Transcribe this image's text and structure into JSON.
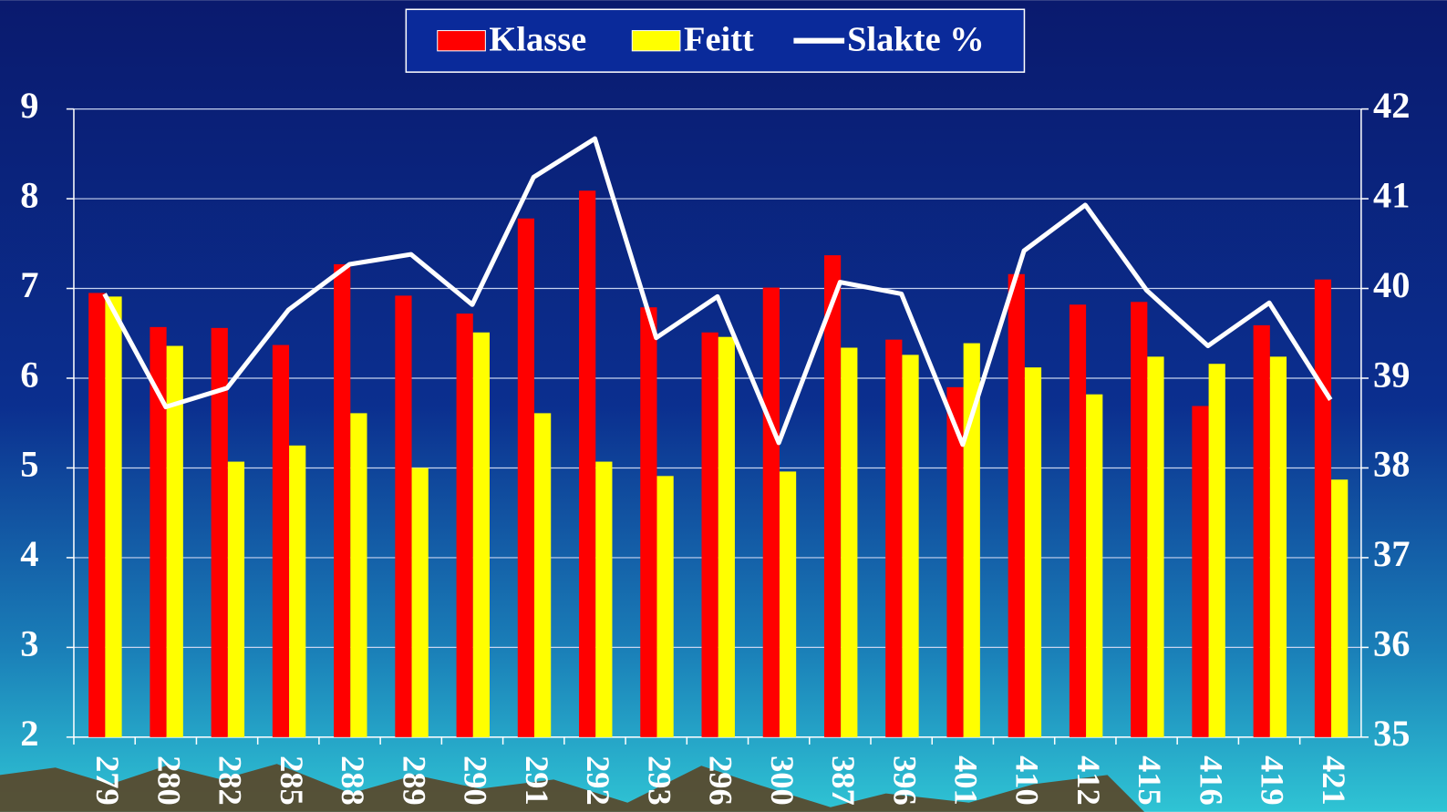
{
  "chart_data": {
    "type": "bar_line",
    "categories": [
      "279",
      "280",
      "282",
      "285",
      "288",
      "289",
      "290",
      "291",
      "292",
      "293",
      "296",
      "300",
      "387",
      "396",
      "401",
      "410",
      "412",
      "415",
      "416",
      "419",
      "421"
    ],
    "series": [
      {
        "name": "Klasse",
        "color": "#ff0000",
        "type": "bar",
        "values": [
          6.95,
          6.57,
          6.56,
          6.37,
          7.27,
          6.92,
          6.72,
          7.78,
          8.09,
          6.79,
          6.51,
          7.01,
          7.37,
          6.43,
          5.9,
          7.16,
          6.82,
          6.85,
          5.69,
          6.59,
          7.1
        ]
      },
      {
        "name": "Feitt",
        "color": "#ffff00",
        "type": "bar",
        "values": [
          6.91,
          6.36,
          5.07,
          5.25,
          5.61,
          5.0,
          6.51,
          5.61,
          5.07,
          4.91,
          6.46,
          4.96,
          6.34,
          6.26,
          6.39,
          6.12,
          5.82,
          6.24,
          6.16,
          6.24,
          4.87
        ]
      },
      {
        "name": "Slakte %",
        "color": "#ffffff",
        "type": "line",
        "axis": "y2",
        "values": [
          39.94,
          38.68,
          38.89,
          39.76,
          40.27,
          40.38,
          39.82,
          41.24,
          41.67,
          39.45,
          39.91,
          38.28,
          40.07,
          39.94,
          38.26,
          40.42,
          40.93,
          39.98,
          39.36,
          39.84,
          38.76
        ]
      }
    ],
    "ylim": [
      2,
      9
    ],
    "yticks": [
      2,
      3,
      4,
      5,
      6,
      7,
      8,
      9
    ],
    "y2lim": [
      35,
      42
    ],
    "y2ticks": [
      35,
      36,
      37,
      38,
      39,
      40,
      41,
      42
    ],
    "grid": true,
    "legend": "top"
  }
}
